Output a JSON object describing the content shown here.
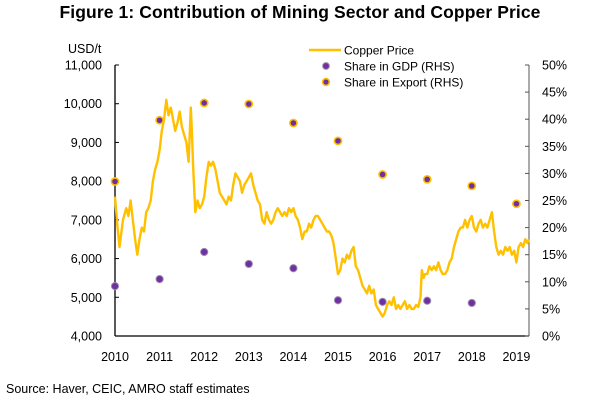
{
  "figure": {
    "title": "Figure 1:  Contribution of Mining Sector and Copper Price",
    "source": "Source: Haver, CEIC, AMRO staff estimates"
  },
  "colors": {
    "copper": "#FFC000",
    "dot_fill": "#7030A0",
    "dot_gdp_edge": "#9C8FB0",
    "dot_export_edge": "#FFC000",
    "axis": "#000000"
  },
  "chart_data": {
    "type": "line",
    "title": "Figure 1:  Contribution of Mining Sector and Copper Price",
    "xlabel": "",
    "ylabel": "USD/t",
    "y2label": "",
    "xlim": [
      2010,
      2019.3
    ],
    "ylim": [
      4000,
      11000
    ],
    "y2lim": [
      0,
      50
    ],
    "x_ticks": [
      "2010",
      "2011",
      "2012",
      "2013",
      "2014",
      "2015",
      "2016",
      "2017",
      "2018",
      "2019"
    ],
    "y_ticks": [
      "4,000",
      "5,000",
      "6,000",
      "7,000",
      "8,000",
      "9,000",
      "10,000",
      "11,000"
    ],
    "y2_ticks": [
      "0%",
      "5%",
      "10%",
      "15%",
      "20%",
      "25%",
      "30%",
      "35%",
      "40%",
      "45%",
      "50%"
    ],
    "grid": false,
    "legend_position": "top-center",
    "legend": [
      "Copper Price",
      "Share in GDP (RHS)",
      "Share in Export (RHS)"
    ],
    "series": [
      {
        "name": "Copper Price",
        "kind": "line",
        "axis": "left",
        "points": [
          [
            2010.0,
            7600
          ],
          [
            2010.05,
            6900
          ],
          [
            2010.1,
            6300
          ],
          [
            2010.18,
            7000
          ],
          [
            2010.25,
            7300
          ],
          [
            2010.3,
            7100
          ],
          [
            2010.35,
            7500
          ],
          [
            2010.4,
            7000
          ],
          [
            2010.45,
            6500
          ],
          [
            2010.5,
            6100
          ],
          [
            2010.55,
            6500
          ],
          [
            2010.6,
            6800
          ],
          [
            2010.65,
            6700
          ],
          [
            2010.7,
            7200
          ],
          [
            2010.75,
            7300
          ],
          [
            2010.8,
            7500
          ],
          [
            2010.85,
            8000
          ],
          [
            2010.9,
            8300
          ],
          [
            2010.95,
            8500
          ],
          [
            2011.0,
            8800
          ],
          [
            2011.05,
            9300
          ],
          [
            2011.1,
            9600
          ],
          [
            2011.15,
            10100
          ],
          [
            2011.2,
            9700
          ],
          [
            2011.25,
            9900
          ],
          [
            2011.3,
            9600
          ],
          [
            2011.35,
            9300
          ],
          [
            2011.4,
            9500
          ],
          [
            2011.45,
            9800
          ],
          [
            2011.5,
            9400
          ],
          [
            2011.55,
            9200
          ],
          [
            2011.6,
            9000
          ],
          [
            2011.65,
            8500
          ],
          [
            2011.7,
            9900
          ],
          [
            2011.72,
            9400
          ],
          [
            2011.75,
            8400
          ],
          [
            2011.8,
            7200
          ],
          [
            2011.85,
            7500
          ],
          [
            2011.9,
            7300
          ],
          [
            2011.95,
            7400
          ],
          [
            2012.0,
            7600
          ],
          [
            2012.05,
            8100
          ],
          [
            2012.1,
            8500
          ],
          [
            2012.15,
            8400
          ],
          [
            2012.2,
            8500
          ],
          [
            2012.25,
            8300
          ],
          [
            2012.3,
            8000
          ],
          [
            2012.35,
            7700
          ],
          [
            2012.4,
            7600
          ],
          [
            2012.45,
            7500
          ],
          [
            2012.5,
            7400
          ],
          [
            2012.55,
            7600
          ],
          [
            2012.6,
            7500
          ],
          [
            2012.65,
            7900
          ],
          [
            2012.7,
            8200
          ],
          [
            2012.75,
            8100
          ],
          [
            2012.8,
            8000
          ],
          [
            2012.85,
            7700
          ],
          [
            2012.9,
            7900
          ],
          [
            2012.95,
            8000
          ],
          [
            2013.0,
            8100
          ],
          [
            2013.05,
            8200
          ],
          [
            2013.1,
            7900
          ],
          [
            2013.15,
            7700
          ],
          [
            2013.2,
            7500
          ],
          [
            2013.25,
            7400
          ],
          [
            2013.3,
            7000
          ],
          [
            2013.35,
            6900
          ],
          [
            2013.4,
            7200
          ],
          [
            2013.45,
            7000
          ],
          [
            2013.5,
            6900
          ],
          [
            2013.55,
            7000
          ],
          [
            2013.6,
            7200
          ],
          [
            2013.65,
            7300
          ],
          [
            2013.7,
            7200
          ],
          [
            2013.75,
            7100
          ],
          [
            2013.8,
            7200
          ],
          [
            2013.85,
            7100
          ],
          [
            2013.9,
            7300
          ],
          [
            2013.95,
            7200
          ],
          [
            2014.0,
            7300
          ],
          [
            2014.05,
            7100
          ],
          [
            2014.1,
            7000
          ],
          [
            2014.15,
            6800
          ],
          [
            2014.2,
            6500
          ],
          [
            2014.25,
            6700
          ],
          [
            2014.3,
            6700
          ],
          [
            2014.35,
            6900
          ],
          [
            2014.4,
            6800
          ],
          [
            2014.45,
            7000
          ],
          [
            2014.5,
            7100
          ],
          [
            2014.55,
            7100
          ],
          [
            2014.6,
            7000
          ],
          [
            2014.65,
            6900
          ],
          [
            2014.7,
            6800
          ],
          [
            2014.75,
            6700
          ],
          [
            2014.8,
            6700
          ],
          [
            2014.85,
            6600
          ],
          [
            2014.9,
            6400
          ],
          [
            2014.95,
            6000
          ],
          [
            2015.0,
            5600
          ],
          [
            2015.05,
            5700
          ],
          [
            2015.1,
            6000
          ],
          [
            2015.15,
            5900
          ],
          [
            2015.2,
            6100
          ],
          [
            2015.25,
            6000
          ],
          [
            2015.3,
            6200
          ],
          [
            2015.35,
            6300
          ],
          [
            2015.4,
            5800
          ],
          [
            2015.45,
            5700
          ],
          [
            2015.5,
            5500
          ],
          [
            2015.55,
            5300
          ],
          [
            2015.6,
            5200
          ],
          [
            2015.65,
            5100
          ],
          [
            2015.7,
            5300
          ],
          [
            2015.75,
            5100
          ],
          [
            2015.8,
            5200
          ],
          [
            2015.85,
            4800
          ],
          [
            2015.9,
            4700
          ],
          [
            2015.95,
            4600
          ],
          [
            2016.0,
            4500
          ],
          [
            2016.05,
            4600
          ],
          [
            2016.1,
            4800
          ],
          [
            2016.15,
            4900
          ],
          [
            2016.2,
            4800
          ],
          [
            2016.25,
            5000
          ],
          [
            2016.3,
            4700
          ],
          [
            2016.35,
            4800
          ],
          [
            2016.4,
            4700
          ],
          [
            2016.45,
            4800
          ],
          [
            2016.5,
            4900
          ],
          [
            2016.55,
            4700
          ],
          [
            2016.6,
            4800
          ],
          [
            2016.65,
            4700
          ],
          [
            2016.7,
            4700
          ],
          [
            2016.75,
            4800
          ],
          [
            2016.8,
            4750
          ],
          [
            2016.85,
            5000
          ],
          [
            2016.88,
            5700
          ],
          [
            2016.92,
            5500
          ],
          [
            2016.95,
            5600
          ],
          [
            2017.0,
            5600
          ],
          [
            2017.05,
            5800
          ],
          [
            2017.1,
            5700
          ],
          [
            2017.15,
            5800
          ],
          [
            2017.2,
            5700
          ],
          [
            2017.25,
            5900
          ],
          [
            2017.3,
            5700
          ],
          [
            2017.35,
            5600
          ],
          [
            2017.4,
            5600
          ],
          [
            2017.45,
            5700
          ],
          [
            2017.5,
            5900
          ],
          [
            2017.55,
            6000
          ],
          [
            2017.6,
            6300
          ],
          [
            2017.65,
            6500
          ],
          [
            2017.7,
            6700
          ],
          [
            2017.75,
            6800
          ],
          [
            2017.8,
            6800
          ],
          [
            2017.85,
            7000
          ],
          [
            2017.9,
            6800
          ],
          [
            2017.95,
            7000
          ],
          [
            2018.0,
            7100
          ],
          [
            2018.05,
            6800
          ],
          [
            2018.1,
            6700
          ],
          [
            2018.15,
            6900
          ],
          [
            2018.2,
            7000
          ],
          [
            2018.25,
            6800
          ],
          [
            2018.3,
            6900
          ],
          [
            2018.35,
            6800
          ],
          [
            2018.4,
            7000
          ],
          [
            2018.45,
            7200
          ],
          [
            2018.5,
            6700
          ],
          [
            2018.55,
            6300
          ],
          [
            2018.6,
            6100
          ],
          [
            2018.65,
            6200
          ],
          [
            2018.7,
            6100
          ],
          [
            2018.75,
            6300
          ],
          [
            2018.8,
            6200
          ],
          [
            2018.85,
            6300
          ],
          [
            2018.9,
            6100
          ],
          [
            2018.95,
            6200
          ],
          [
            2019.0,
            5900
          ],
          [
            2019.05,
            6300
          ],
          [
            2019.1,
            6400
          ],
          [
            2019.15,
            6300
          ],
          [
            2019.2,
            6500
          ],
          [
            2019.25,
            6400
          ],
          [
            2019.28,
            6500
          ]
        ]
      },
      {
        "name": "Share in GDP (RHS)",
        "kind": "scatter",
        "axis": "right",
        "x": [
          2010,
          2011,
          2012,
          2013,
          2014,
          2015,
          2016,
          2017,
          2018
        ],
        "values": [
          9.2,
          10.5,
          15.5,
          13.3,
          12.5,
          6.6,
          6.3,
          6.5,
          6.1
        ]
      },
      {
        "name": "Share in Export (RHS)",
        "kind": "scatter",
        "axis": "right",
        "x": [
          2010,
          2011,
          2012,
          2013,
          2014,
          2015,
          2016,
          2017,
          2018,
          2019
        ],
        "values": [
          28.5,
          39.8,
          43.0,
          42.8,
          39.3,
          36.0,
          29.8,
          28.9,
          27.7,
          24.4
        ]
      }
    ]
  }
}
